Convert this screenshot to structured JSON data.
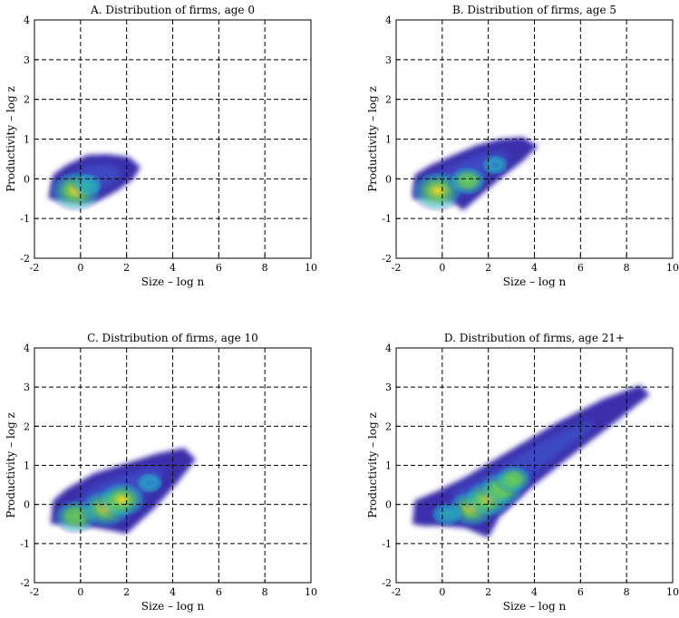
{
  "chart_data": [
    {
      "type": "heatmap",
      "title": "A. Distribution of firms, age 0",
      "xlabel": "Size – log n",
      "ylabel": "Productivity – log z",
      "xlim": [
        -2,
        10
      ],
      "ylim": [
        -2,
        4
      ],
      "xticks": [
        "-2",
        "0",
        "2",
        "4",
        "6",
        "8",
        "10"
      ],
      "yticks": [
        "-2",
        "-1",
        "0",
        "1",
        "2",
        "3",
        "4"
      ],
      "grid": "dashed",
      "region_outline": [
        [
          -1.4,
          -0.5
        ],
        [
          -1.2,
          0.1
        ],
        [
          -0.6,
          0.35
        ],
        [
          0.3,
          0.6
        ],
        [
          1.2,
          0.62
        ],
        [
          2.1,
          0.55
        ],
        [
          2.6,
          0.3
        ],
        [
          2.3,
          0.0
        ],
        [
          1.6,
          -0.3
        ],
        [
          0.8,
          -0.55
        ],
        [
          0.2,
          -0.6
        ],
        [
          -0.7,
          -0.55
        ]
      ],
      "density_peaks": [
        {
          "x": -0.2,
          "y": -0.3,
          "density": 1.0
        },
        {
          "x": 0.3,
          "y": -0.15,
          "density": 0.3
        }
      ]
    },
    {
      "type": "heatmap",
      "title": "B. Distribution of firms, age 5",
      "xlabel": "Size – log n",
      "ylabel": "Productivity – log z",
      "xlim": [
        -2,
        10
      ],
      "ylim": [
        -2,
        4
      ],
      "xticks": [
        "-2",
        "0",
        "2",
        "4",
        "6",
        "8",
        "10"
      ],
      "yticks": [
        "-2",
        "-1",
        "0",
        "1",
        "2",
        "3",
        "4"
      ],
      "grid": "dashed",
      "region_outline": [
        [
          -1.3,
          -0.5
        ],
        [
          -1.2,
          0.1
        ],
        [
          -0.5,
          0.35
        ],
        [
          0.5,
          0.6
        ],
        [
          1.5,
          0.85
        ],
        [
          2.5,
          1.0
        ],
        [
          3.5,
          1.05
        ],
        [
          4.15,
          0.82
        ],
        [
          3.5,
          0.45
        ],
        [
          2.5,
          0.0
        ],
        [
          1.6,
          -0.45
        ],
        [
          0.9,
          -0.8
        ],
        [
          0.4,
          -0.55
        ],
        [
          -0.5,
          -0.5
        ]
      ],
      "density_peaks": [
        {
          "x": -0.2,
          "y": -0.3,
          "density": 1.0
        },
        {
          "x": 1.1,
          "y": -0.05,
          "density": 0.55
        },
        {
          "x": 2.3,
          "y": 0.35,
          "density": 0.18
        }
      ]
    },
    {
      "type": "heatmap",
      "title": "C. Distribution of firms, age 10",
      "xlabel": "Size – log n",
      "ylabel": "Productivity – log z",
      "xlim": [
        -2,
        10
      ],
      "ylim": [
        -2,
        4
      ],
      "xticks": [
        "-2",
        "0",
        "2",
        "4",
        "6",
        "8",
        "10"
      ],
      "yticks": [
        "-2",
        "-1",
        "0",
        "1",
        "2",
        "3",
        "4"
      ],
      "grid": "dashed",
      "region_outline": [
        [
          -1.3,
          -0.5
        ],
        [
          -1.2,
          0.1
        ],
        [
          -0.6,
          0.4
        ],
        [
          0.6,
          0.8
        ],
        [
          2.0,
          1.05
        ],
        [
          3.3,
          1.3
        ],
        [
          4.5,
          1.45
        ],
        [
          5.0,
          1.15
        ],
        [
          4.2,
          0.55
        ],
        [
          3.2,
          -0.1
        ],
        [
          2.0,
          -0.75
        ],
        [
          1.2,
          -0.65
        ],
        [
          0.2,
          -0.55
        ],
        [
          -0.5,
          -0.5
        ]
      ],
      "density_peaks": [
        {
          "x": -0.2,
          "y": -0.3,
          "density": 0.75
        },
        {
          "x": 1.1,
          "y": -0.1,
          "density": 0.95
        },
        {
          "x": 1.8,
          "y": 0.12,
          "density": 0.85
        },
        {
          "x": 3.0,
          "y": 0.55,
          "density": 0.2
        }
      ]
    },
    {
      "type": "heatmap",
      "title": "D. Distribution of firms, age 21+",
      "xlabel": "Size – log n",
      "ylabel": "Productivity – log z",
      "xlim": [
        -2,
        10
      ],
      "ylim": [
        -2,
        4
      ],
      "xticks": [
        "-2",
        "0",
        "2",
        "4",
        "6",
        "8",
        "10"
      ],
      "yticks": [
        "-2",
        "-1",
        "0",
        "1",
        "2",
        "3",
        "4"
      ],
      "grid": "dashed",
      "region_outline": [
        [
          -1.3,
          -0.5
        ],
        [
          -1.2,
          0.1
        ],
        [
          -0.2,
          0.35
        ],
        [
          1.0,
          0.7
        ],
        [
          3.0,
          1.4
        ],
        [
          5.0,
          2.1
        ],
        [
          7.0,
          2.7
        ],
        [
          8.6,
          3.05
        ],
        [
          9.0,
          2.8
        ],
        [
          7.5,
          2.1
        ],
        [
          5.5,
          1.2
        ],
        [
          4.0,
          0.5
        ],
        [
          2.5,
          -0.3
        ],
        [
          2.0,
          -0.85
        ],
        [
          1.0,
          -0.6
        ],
        [
          0.0,
          -0.55
        ],
        [
          -0.8,
          -0.55
        ]
      ],
      "density_peaks": [
        {
          "x": 1.3,
          "y": -0.1,
          "density": 0.9
        },
        {
          "x": 2.0,
          "y": 0.15,
          "density": 0.9
        },
        {
          "x": 2.6,
          "y": 0.4,
          "density": 0.75
        },
        {
          "x": 3.1,
          "y": 0.65,
          "density": 0.5
        },
        {
          "x": 0.2,
          "y": -0.25,
          "density": 0.35
        }
      ]
    }
  ],
  "colors": {
    "viridis_low": "#3b2dab",
    "viridis_mid": "#21a9c4",
    "viridis_high": "#f5d81c"
  }
}
